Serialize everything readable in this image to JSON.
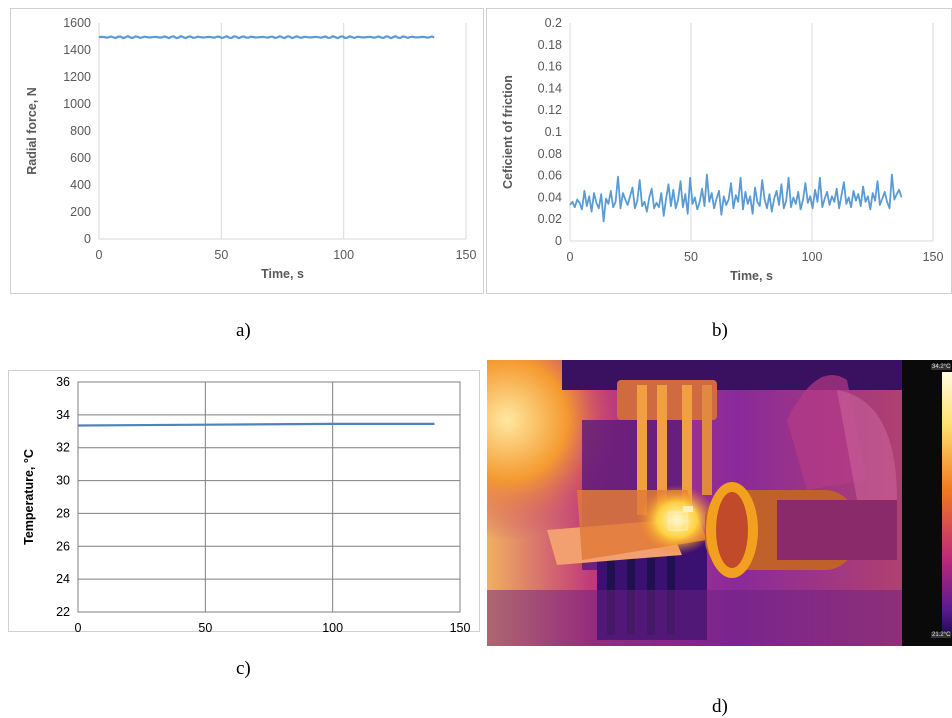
{
  "captions": {
    "a": "a)",
    "b": "b)",
    "c": "c)",
    "d": "d)"
  },
  "chart_data": [
    {
      "id": "a",
      "type": "line",
      "xlabel": "Time, s",
      "ylabel": "Radial force, N",
      "xlim": [
        0,
        150
      ],
      "ylim": [
        0,
        1600
      ],
      "xticks": [
        0,
        50,
        100,
        150
      ],
      "yticks": [
        0,
        200,
        400,
        600,
        800,
        1000,
        1200,
        1400,
        1600
      ],
      "grid": "vertical",
      "series": [
        {
          "color": "#5b9bd5",
          "x_start": 0,
          "x_end": 137,
          "mean": 1495,
          "amplitude": 8
        }
      ]
    },
    {
      "id": "b",
      "type": "line",
      "xlabel": "Time, s",
      "ylabel": "Ceficient of friction",
      "xlim": [
        0,
        150
      ],
      "ylim": [
        0,
        0.2
      ],
      "xticks": [
        0,
        50,
        100,
        150
      ],
      "yticks": [
        "0",
        "0.02",
        "0.04",
        "0.06",
        "0.08",
        "0.1",
        "0.12",
        "0.14",
        "0.16",
        "0.18",
        "0.2"
      ],
      "grid": "vertical",
      "series": [
        {
          "color": "#5b9bd5",
          "x_start": 0,
          "x_end": 137,
          "values": [
            0.033,
            0.036,
            0.031,
            0.038,
            0.035,
            0.029,
            0.046,
            0.032,
            0.041,
            0.027,
            0.044,
            0.035,
            0.03,
            0.043,
            0.018,
            0.039,
            0.034,
            0.046,
            0.031,
            0.036,
            0.059,
            0.03,
            0.044,
            0.038,
            0.033,
            0.041,
            0.049,
            0.03,
            0.037,
            0.056,
            0.032,
            0.036,
            0.027,
            0.04,
            0.048,
            0.03,
            0.035,
            0.031,
            0.044,
            0.023,
            0.039,
            0.052,
            0.032,
            0.047,
            0.03,
            0.038,
            0.055,
            0.031,
            0.043,
            0.025,
            0.058,
            0.034,
            0.04,
            0.029,
            0.036,
            0.048,
            0.032,
            0.061,
            0.036,
            0.044,
            0.03,
            0.039,
            0.046,
            0.024,
            0.041,
            0.033,
            0.038,
            0.053,
            0.03,
            0.042,
            0.036,
            0.058,
            0.029,
            0.045,
            0.034,
            0.041,
            0.025,
            0.049,
            0.036,
            0.032,
            0.056,
            0.038,
            0.03,
            0.043,
            0.027,
            0.039,
            0.046,
            0.033,
            0.052,
            0.03,
            0.037,
            0.058,
            0.031,
            0.04,
            0.034,
            0.045,
            0.029,
            0.038,
            0.053,
            0.035,
            0.041,
            0.03,
            0.047,
            0.036,
            0.058,
            0.031,
            0.039,
            0.045,
            0.033,
            0.041,
            0.036,
            0.048,
            0.03,
            0.042,
            0.054,
            0.034,
            0.04,
            0.031,
            0.046,
            0.037,
            0.043,
            0.032,
            0.05,
            0.036,
            0.041,
            0.029,
            0.044,
            0.037,
            0.055,
            0.033,
            0.039,
            0.045,
            0.036,
            0.03,
            0.061,
            0.038,
            0.043,
            0.047,
            0.04
          ]
        }
      ]
    },
    {
      "id": "c",
      "type": "line",
      "xlabel": "Time, s",
      "ylabel": "Temperature, °C",
      "xlim": [
        0,
        150
      ],
      "ylim": [
        22,
        36
      ],
      "xticks": [
        0,
        50,
        100,
        150
      ],
      "yticks": [
        22,
        24,
        26,
        28,
        30,
        32,
        34,
        36
      ],
      "grid": "both",
      "series": [
        {
          "color": "#4f81bd",
          "x": [
            0,
            50,
            100,
            140
          ],
          "y": [
            33.35,
            33.4,
            33.45,
            33.45
          ]
        }
      ]
    }
  ],
  "thermal_image": {
    "scale_max": "34.2°C",
    "scale_min": "21.2°C",
    "colors": {
      "hot": "#fff6a8",
      "warm": "#f7a51c",
      "mid": "#d4396c",
      "cool": "#7b2ea0",
      "cold": "#2a0f5e"
    }
  }
}
